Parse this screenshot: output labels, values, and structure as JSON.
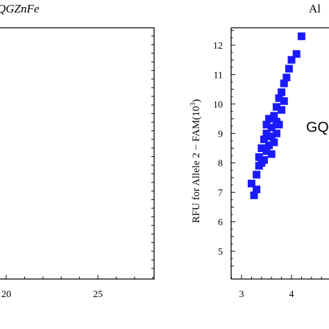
{
  "chart_data": [
    {
      "type": "scatter",
      "panel": "left",
      "title": "QGZnFe",
      "xlim": [
        null,
        28
      ],
      "x_ticks": [
        "20",
        "25"
      ],
      "y_ticks": [],
      "grid": false,
      "points": []
    },
    {
      "type": "scatter",
      "panel": "right",
      "title": "Al",
      "ylabel": "RFU for Allele 2 − FAM(10",
      "ylabel_sup": "3",
      "ylabel_end": ")",
      "annotation": "GQ",
      "xlim": [
        2.8,
        5.3
      ],
      "ylim": [
        4.3,
        12.6
      ],
      "x_ticks": [
        "3",
        "4"
      ],
      "y_ticks": [
        "5",
        "6",
        "7",
        "8",
        "9",
        "10",
        "11",
        "12"
      ],
      "grid": false,
      "marker": "square",
      "color": "#1a1aff",
      "points": [
        [
          3.2,
          7.3
        ],
        [
          3.25,
          6.9
        ],
        [
          3.3,
          7.1
        ],
        [
          3.3,
          7.6
        ],
        [
          3.35,
          7.9
        ],
        [
          3.35,
          8.2
        ],
        [
          3.4,
          8.0
        ],
        [
          3.4,
          8.5
        ],
        [
          3.45,
          8.1
        ],
        [
          3.45,
          8.8
        ],
        [
          3.5,
          8.4
        ],
        [
          3.5,
          9.0
        ],
        [
          3.5,
          9.3
        ],
        [
          3.55,
          8.6
        ],
        [
          3.55,
          9.5
        ],
        [
          3.6,
          8.3
        ],
        [
          3.6,
          8.9
        ],
        [
          3.6,
          9.2
        ],
        [
          3.65,
          8.7
        ],
        [
          3.65,
          9.6
        ],
        [
          3.7,
          9.0
        ],
        [
          3.7,
          9.4
        ],
        [
          3.7,
          9.9
        ],
        [
          3.75,
          9.3
        ],
        [
          3.75,
          10.2
        ],
        [
          3.8,
          9.8
        ],
        [
          3.8,
          10.4
        ],
        [
          3.85,
          10.1
        ],
        [
          3.85,
          10.7
        ],
        [
          3.9,
          10.9
        ],
        [
          3.95,
          11.2
        ],
        [
          4.0,
          11.5
        ],
        [
          4.1,
          11.7
        ],
        [
          4.2,
          12.3
        ]
      ]
    }
  ]
}
